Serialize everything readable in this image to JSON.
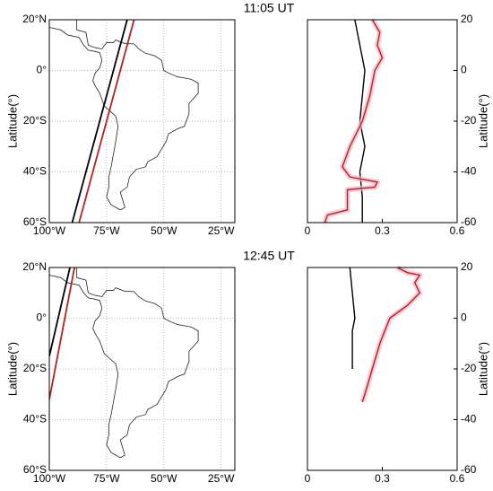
{
  "chart_data": [
    {
      "type": "map",
      "title": "11:05 UT",
      "ylabel": "Latitude(°)",
      "grid": true,
      "xlim": [
        -100,
        -19
      ],
      "ylim": [
        -60,
        20
      ],
      "xticks": [
        {
          "value": -100,
          "label": "100°W"
        },
        {
          "value": -75,
          "label": "75°W"
        },
        {
          "value": -50,
          "label": "50°W"
        },
        {
          "value": -25,
          "label": "25°W"
        }
      ],
      "yticks": [
        {
          "value": -60,
          "label": "60°S"
        },
        {
          "value": -40,
          "label": "40°S"
        },
        {
          "value": -20,
          "label": "20°S"
        },
        {
          "value": 0,
          "label": "0°"
        },
        {
          "value": 20,
          "label": "20°N"
        }
      ],
      "series": [
        {
          "color": "#000000",
          "x": [
            -90,
            -66
          ],
          "y": [
            -60,
            20
          ]
        },
        {
          "color": "#b22222",
          "x": [
            -87,
            -63
          ],
          "y": [
            -60,
            20
          ]
        }
      ]
    },
    {
      "type": "profile",
      "ylabel": "Latitude(°)",
      "xlim": [
        0,
        0.6
      ],
      "ylim": [
        -60,
        20
      ],
      "xticks": [
        0,
        0.3,
        0.6
      ],
      "yticks": [
        -60,
        -40,
        -20,
        0,
        20
      ],
      "series": [
        {
          "color": "#000000",
          "x": [
            0.19,
            0.21,
            0.23,
            0.22,
            0.21,
            0.23,
            0.21,
            0.22,
            0.22
          ],
          "y": [
            20,
            10,
            0,
            -10,
            -20,
            -30,
            -40,
            -50,
            -60
          ]
        },
        {
          "color": "#b22222",
          "x": [
            0.26,
            0.29,
            0.28,
            0.3,
            0.27,
            0.25,
            0.22,
            0.17,
            0.14,
            0.17,
            0.28,
            0.27,
            0.16,
            0.16,
            0.08,
            0.07
          ],
          "y": [
            20,
            15,
            10,
            5,
            0,
            -10,
            -20,
            -30,
            -38,
            -42,
            -44,
            -46,
            -47,
            -55,
            -57,
            -60
          ]
        }
      ]
    },
    {
      "type": "map",
      "title": "12:45 UT",
      "ylabel": "Latitude(°)",
      "grid": true,
      "xlim": [
        -100,
        -19
      ],
      "ylim": [
        -60,
        20
      ],
      "xticks": [
        {
          "value": -100,
          "label": "100°W"
        },
        {
          "value": -75,
          "label": "75°W"
        },
        {
          "value": -50,
          "label": "50°W"
        },
        {
          "value": -25,
          "label": "25°W"
        }
      ],
      "yticks": [
        {
          "value": -60,
          "label": "60°S"
        },
        {
          "value": -40,
          "label": "40°S"
        },
        {
          "value": -20,
          "label": "20°S"
        },
        {
          "value": 0,
          "label": "0°"
        },
        {
          "value": 20,
          "label": "20°N"
        }
      ],
      "series": [
        {
          "color": "#000000",
          "x": [
            -100,
            -91
          ],
          "y": [
            -15,
            20
          ]
        },
        {
          "color": "#b22222",
          "x": [
            -100,
            -89
          ],
          "y": [
            -32,
            20
          ]
        }
      ]
    },
    {
      "type": "profile",
      "ylabel": "Latitude(°)",
      "xlim": [
        0,
        0.6
      ],
      "ylim": [
        -60,
        20
      ],
      "xticks": [
        0,
        0.3,
        0.6
      ],
      "yticks": [
        -60,
        -40,
        -20,
        0,
        20
      ],
      "series": [
        {
          "color": "#000000",
          "x": [
            0.17,
            0.18,
            0.19,
            0.18,
            0.18,
            0.18
          ],
          "y": [
            20,
            10,
            0,
            -5,
            -10,
            -20
          ]
        },
        {
          "color": "#b22222",
          "x": [
            0.36,
            0.4,
            0.45,
            0.43,
            0.45,
            0.4,
            0.33,
            0.29,
            0.26,
            0.23,
            0.22
          ],
          "y": [
            20,
            18,
            17,
            14,
            10,
            5,
            0,
            -10,
            -20,
            -30,
            -33
          ]
        }
      ]
    }
  ]
}
